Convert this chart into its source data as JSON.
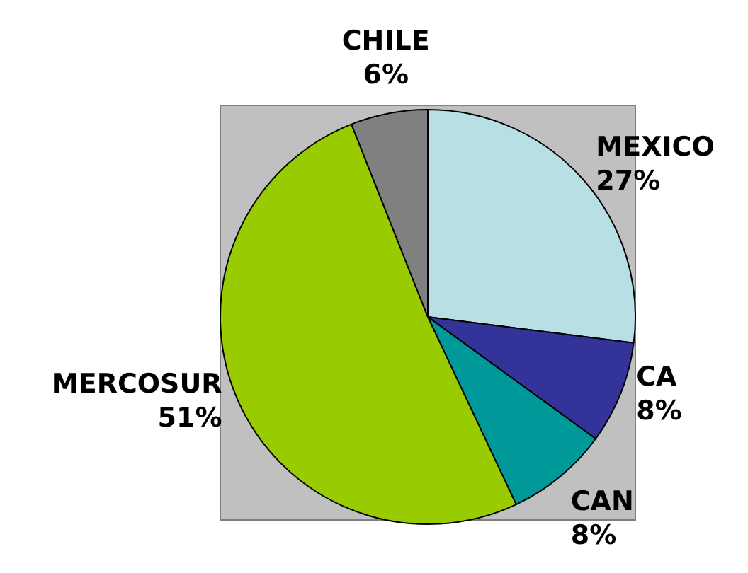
{
  "chart_data": {
    "type": "pie",
    "categories": [
      "MEXICO",
      "CA",
      "CAN",
      "MERCOSUR",
      "CHILE"
    ],
    "values": [
      27,
      8,
      8,
      51,
      6
    ],
    "value_labels": [
      "27%",
      "8%",
      "8%",
      "51%",
      "6%"
    ],
    "colors": [
      "#b8e0e4",
      "#333399",
      "#009999",
      "#99cc00",
      "#808080"
    ],
    "legend": false
  }
}
